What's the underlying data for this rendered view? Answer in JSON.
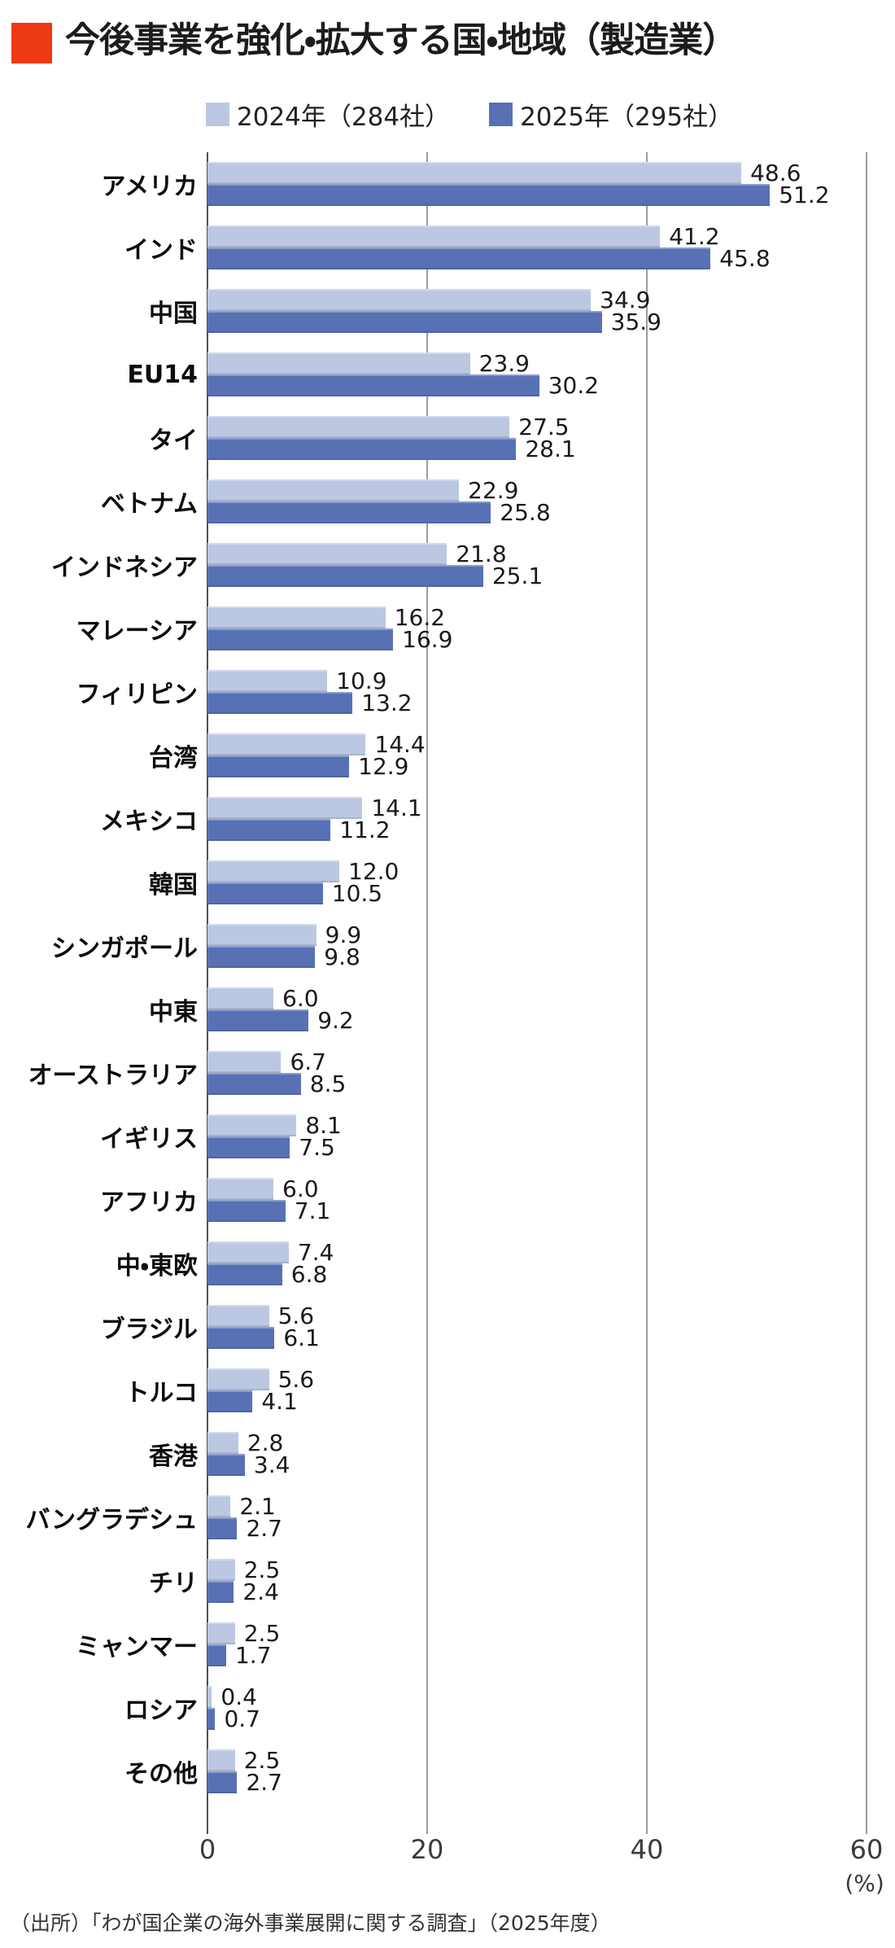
{
  "header": {
    "title": "今後事業を強化・拡大する国・地域（製造業）",
    "accent_color": "#ee3a12"
  },
  "legend": [
    {
      "label": "2024年（284社）",
      "color": "#bcc7e2"
    },
    {
      "label": "2025年（295社）",
      "color": "#5871b5"
    }
  ],
  "chart_data": {
    "type": "bar",
    "orientation": "horizontal",
    "title": "今後事業を強化・拡大する国・地域（製造業）",
    "categories": [
      "アメリカ",
      "インド",
      "中国",
      "EU14",
      "タイ",
      "ベトナム",
      "インドネシア",
      "マレーシア",
      "フィリピン",
      "台湾",
      "メキシコ",
      "韓国",
      "シンガポール",
      "中東",
      "オーストラリア",
      "イギリス",
      "アフリカ",
      "中・東欧",
      "ブラジル",
      "トルコ",
      "香港",
      "バングラデシュ",
      "チリ",
      "ミャンマー",
      "ロシア",
      "その他"
    ],
    "series": [
      {
        "name": "2024年（284社）",
        "color": "#bcc7e2",
        "values": [
          48.6,
          41.2,
          34.9,
          23.9,
          27.5,
          22.9,
          21.8,
          16.2,
          10.9,
          14.4,
          14.1,
          12.0,
          9.9,
          6.0,
          6.7,
          8.1,
          6.0,
          7.4,
          5.6,
          5.6,
          2.8,
          2.1,
          2.5,
          2.5,
          0.4,
          2.5
        ]
      },
      {
        "name": "2025年（295社）",
        "color": "#5871b5",
        "values": [
          51.2,
          45.8,
          35.9,
          30.2,
          28.1,
          25.8,
          25.1,
          16.9,
          13.2,
          12.9,
          11.2,
          10.5,
          9.8,
          9.2,
          8.5,
          7.5,
          7.1,
          6.8,
          6.1,
          4.1,
          3.4,
          2.7,
          2.4,
          1.7,
          0.7,
          2.7
        ]
      }
    ],
    "xlim": [
      0,
      60
    ],
    "x_ticks": [
      0,
      20,
      40,
      60
    ],
    "x_unit": "(%)",
    "grid": true,
    "legend_position": "top",
    "value_labels": true
  },
  "source": "（出所）「わが国企業の海外事業展開に関する調査」（2025年度）"
}
